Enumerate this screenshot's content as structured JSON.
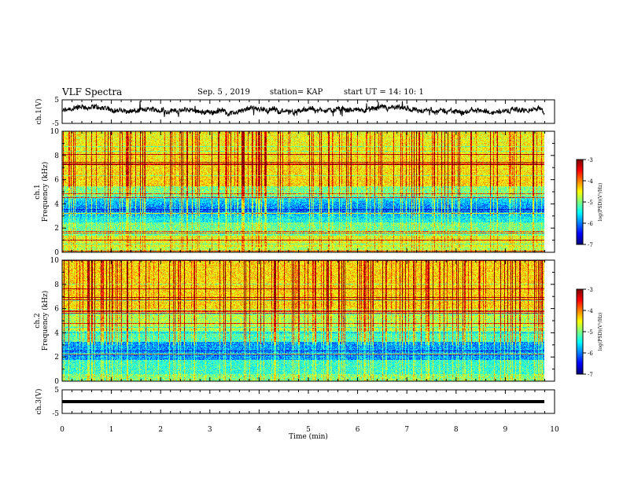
{
  "header": {
    "title": "VLF Spectra",
    "date": "Sep. 5 , 2019",
    "station": "station= KAP",
    "start": "start  UT =   14: 10: 1"
  },
  "chart_data": [
    {
      "type": "line",
      "ylabel": "ch.1(V)",
      "ylim": [
        -5,
        5
      ],
      "yticks": [
        "5",
        "-5"
      ],
      "xlim": [
        0,
        10
      ],
      "description_series": "waveform",
      "baseline": 0.3,
      "amplitude": 2.5
    },
    {
      "type": "heatmap",
      "ylabel": "ch.1\nFrequency (kHz)",
      "ylabel_line1": "ch.1",
      "ylabel_line2": "Frequency (kHz)",
      "ylim": [
        0,
        10
      ],
      "yticks": [
        "0",
        "2",
        "4",
        "6",
        "8",
        "10"
      ],
      "xlim": [
        0,
        9.8
      ],
      "colorbar": {
        "label": "log(PSD)(V²/Hz)",
        "range": [
          -7,
          -3
        ],
        "ticks": [
          "-3",
          "-4",
          "-5",
          "-6",
          "-7"
        ]
      }
    },
    {
      "type": "heatmap",
      "ylabel": "ch.2\nFrequency (kHz)",
      "ylabel_line1": "ch.2",
      "ylabel_line2": "Frequency (kHz)",
      "ylim": [
        0,
        10
      ],
      "yticks": [
        "0",
        "2",
        "4",
        "6",
        "8",
        "10"
      ],
      "xlim": [
        0,
        9.8
      ],
      "colorbar": {
        "label": "log(PSD)(V²/Hz)",
        "range": [
          -7,
          -3
        ],
        "ticks": [
          "-3",
          "-4",
          "-5",
          "-6",
          "-7"
        ]
      }
    },
    {
      "type": "line",
      "ylabel": "ch.3(V)",
      "ylim": [
        -5,
        5
      ],
      "yticks": [
        "5",
        "-5"
      ],
      "value": 0,
      "xlabel": "Time (min)",
      "xlim": [
        0,
        10
      ],
      "xticks": [
        "0",
        "1",
        "2",
        "3",
        "4",
        "5",
        "6",
        "7",
        "8",
        "9",
        "10"
      ]
    }
  ]
}
